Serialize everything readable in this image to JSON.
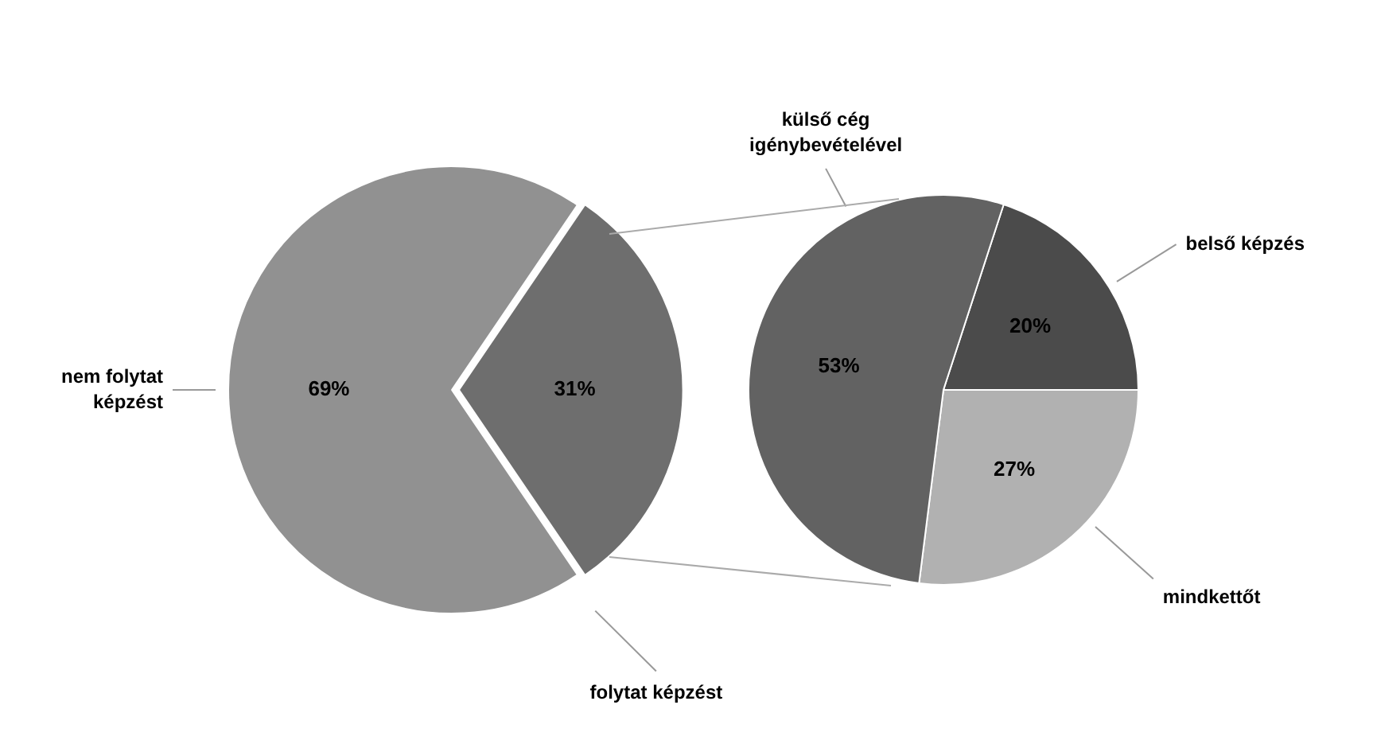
{
  "chart_data": [
    {
      "type": "pie",
      "categories": [
        "nem folytat képzést",
        "folytat képzést"
      ],
      "values": [
        69,
        31
      ],
      "colors": [
        "#919191",
        "#6e6e6e"
      ],
      "value_labels": [
        "69%",
        "31%"
      ],
      "legend": false
    },
    {
      "type": "pie",
      "categories": [
        "belső képzés",
        "mindkettőt",
        "külső cég igénybevételével"
      ],
      "values": [
        20,
        27,
        53
      ],
      "colors": [
        "#4b4b4b",
        "#b1b1b1",
        "#626262"
      ],
      "value_labels": [
        "20%",
        "27%",
        "53%"
      ],
      "legend": false
    }
  ]
}
